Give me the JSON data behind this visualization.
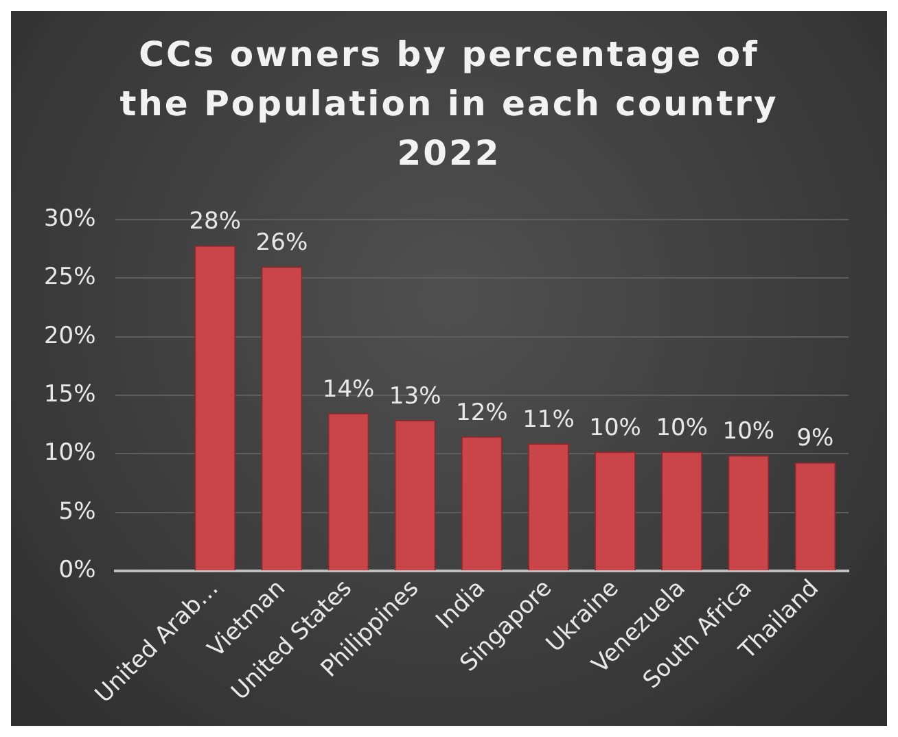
{
  "chart_data": {
    "type": "bar",
    "title": "CCs owners by percentage of the Population in each country 2022",
    "categories": [
      null,
      "United Arab…",
      "Vietman",
      "United States",
      "Philippines",
      "India",
      "Singapore",
      "Ukraine",
      "Venezuela",
      "South Africa",
      "Thailand"
    ],
    "values": [
      null,
      27.8,
      26.0,
      13.5,
      12.9,
      11.5,
      10.9,
      10.2,
      10.2,
      9.9,
      9.3
    ],
    "value_labels": [
      null,
      "28%",
      "26%",
      "14%",
      "13%",
      "12%",
      "11%",
      "10%",
      "10%",
      "10%",
      "9%"
    ],
    "color": "#c9454a",
    "ylim": [
      0,
      30
    ],
    "yticks": [
      {
        "value": 0,
        "label": "0%"
      },
      {
        "value": 5,
        "label": "5%"
      },
      {
        "value": 10,
        "label": "10%"
      },
      {
        "value": 15,
        "label": "15%"
      },
      {
        "value": 20,
        "label": "20%"
      },
      {
        "value": 25,
        "label": "25%"
      },
      {
        "value": 30,
        "label": "30%"
      }
    ],
    "grid": "y",
    "legend": false
  }
}
